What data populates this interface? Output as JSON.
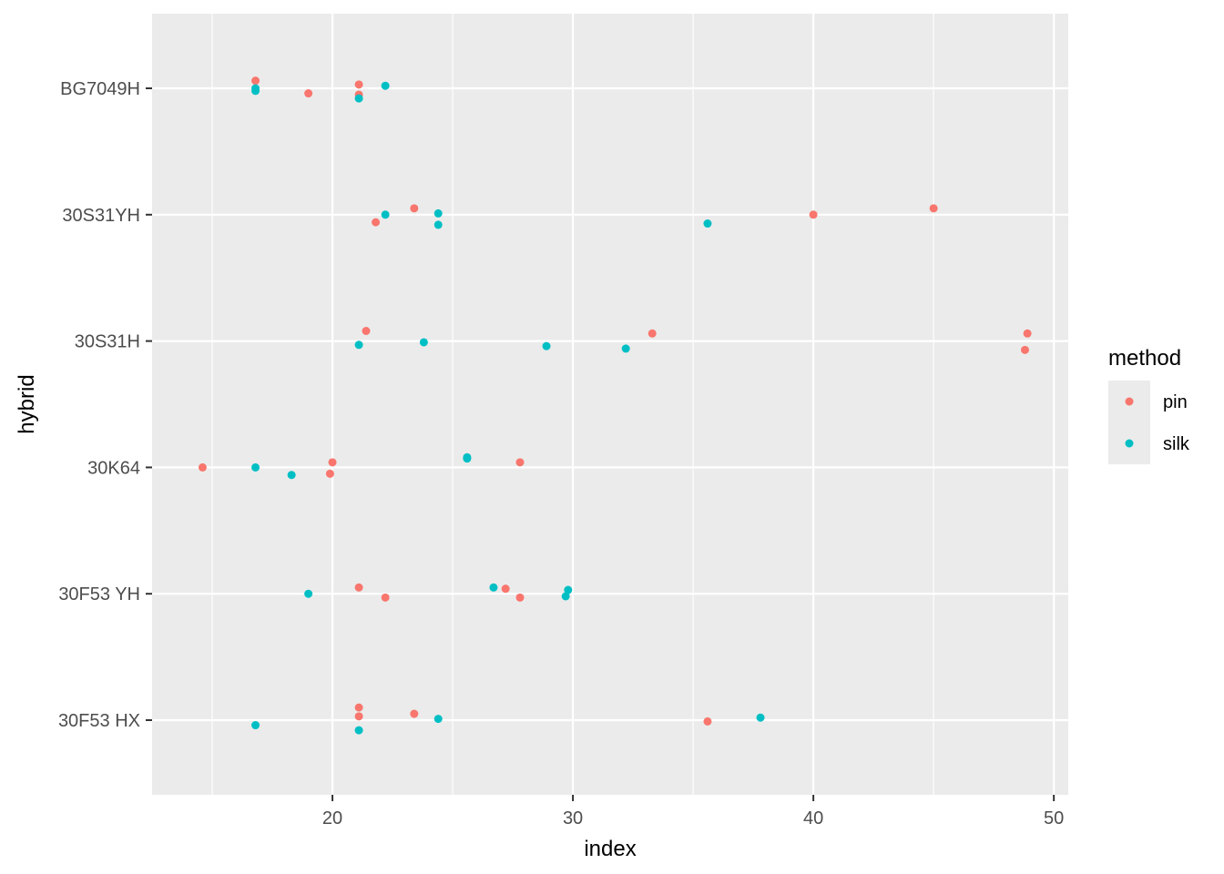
{
  "chart_data": {
    "type": "scatter",
    "title": "",
    "xlabel": "index",
    "ylabel": "hybrid",
    "xlim": [
      12.5,
      50.6
    ],
    "x_ticks": [
      20,
      30,
      40,
      50
    ],
    "categories": [
      "30F53 HX",
      "30F53 YH",
      "30K64",
      "30S31H",
      "30S31YH",
      "BG7049H"
    ],
    "grid": true,
    "legend": {
      "title": "method",
      "position": "right",
      "entries": [
        "pin",
        "silk"
      ]
    },
    "colors": {
      "pin": "#F8766D",
      "silk": "#00BFC4",
      "panel": "#EBEBEB",
      "grid": "#FFFFFF"
    },
    "series": [
      {
        "name": "pin",
        "points": [
          {
            "x": 16.8,
            "y": "BG7049H",
            "jitter": 0.06
          },
          {
            "x": 19.0,
            "y": "BG7049H",
            "jitter": -0.04
          },
          {
            "x": 21.1,
            "y": "BG7049H",
            "jitter": 0.03
          },
          {
            "x": 21.1,
            "y": "BG7049H",
            "jitter": -0.05
          },
          {
            "x": 23.4,
            "y": "30S31YH",
            "jitter": 0.05
          },
          {
            "x": 21.8,
            "y": "30S31YH",
            "jitter": -0.06
          },
          {
            "x": 40.0,
            "y": "30S31YH",
            "jitter": 0.0
          },
          {
            "x": 45.0,
            "y": "30S31YH",
            "jitter": 0.05
          },
          {
            "x": 21.4,
            "y": "30S31H",
            "jitter": 0.08
          },
          {
            "x": 33.3,
            "y": "30S31H",
            "jitter": 0.06
          },
          {
            "x": 48.9,
            "y": "30S31H",
            "jitter": 0.06
          },
          {
            "x": 48.8,
            "y": "30S31H",
            "jitter": -0.07
          },
          {
            "x": 14.6,
            "y": "30K64",
            "jitter": 0.0
          },
          {
            "x": 20.0,
            "y": "30K64",
            "jitter": 0.04
          },
          {
            "x": 19.9,
            "y": "30K64",
            "jitter": -0.05
          },
          {
            "x": 27.8,
            "y": "30K64",
            "jitter": 0.04
          },
          {
            "x": 21.1,
            "y": "30F53 YH",
            "jitter": 0.05
          },
          {
            "x": 22.2,
            "y": "30F53 YH",
            "jitter": -0.03
          },
          {
            "x": 27.2,
            "y": "30F53 YH",
            "jitter": 0.04
          },
          {
            "x": 27.8,
            "y": "30F53 YH",
            "jitter": -0.03
          },
          {
            "x": 21.1,
            "y": "30F53 HX",
            "jitter": 0.1
          },
          {
            "x": 21.1,
            "y": "30F53 HX",
            "jitter": 0.03
          },
          {
            "x": 23.4,
            "y": "30F53 HX",
            "jitter": 0.05
          },
          {
            "x": 35.6,
            "y": "30F53 HX",
            "jitter": -0.01
          }
        ]
      },
      {
        "name": "silk",
        "points": [
          {
            "x": 16.8,
            "y": "BG7049H",
            "jitter": 0.0
          },
          {
            "x": 16.8,
            "y": "BG7049H",
            "jitter": -0.02
          },
          {
            "x": 21.1,
            "y": "BG7049H",
            "jitter": -0.08
          },
          {
            "x": 22.2,
            "y": "BG7049H",
            "jitter": 0.02
          },
          {
            "x": 22.2,
            "y": "30S31YH",
            "jitter": 0.0
          },
          {
            "x": 24.4,
            "y": "30S31YH",
            "jitter": 0.01
          },
          {
            "x": 24.4,
            "y": "30S31YH",
            "jitter": -0.08
          },
          {
            "x": 35.6,
            "y": "30S31YH",
            "jitter": -0.07
          },
          {
            "x": 21.1,
            "y": "30S31H",
            "jitter": -0.03
          },
          {
            "x": 23.8,
            "y": "30S31H",
            "jitter": -0.01
          },
          {
            "x": 28.9,
            "y": "30S31H",
            "jitter": -0.04
          },
          {
            "x": 32.2,
            "y": "30S31H",
            "jitter": -0.06
          },
          {
            "x": 16.8,
            "y": "30K64",
            "jitter": 0.0
          },
          {
            "x": 18.3,
            "y": "30K64",
            "jitter": -0.06
          },
          {
            "x": 25.6,
            "y": "30K64",
            "jitter": 0.08
          },
          {
            "x": 25.6,
            "y": "30K64",
            "jitter": 0.07
          },
          {
            "x": 19.0,
            "y": "30F53 YH",
            "jitter": 0.0
          },
          {
            "x": 26.7,
            "y": "30F53 YH",
            "jitter": 0.05
          },
          {
            "x": 29.7,
            "y": "30F53 YH",
            "jitter": -0.02
          },
          {
            "x": 29.8,
            "y": "30F53 YH",
            "jitter": 0.03
          },
          {
            "x": 16.8,
            "y": "30F53 HX",
            "jitter": -0.04
          },
          {
            "x": 21.1,
            "y": "30F53 HX",
            "jitter": -0.08
          },
          {
            "x": 24.4,
            "y": "30F53 HX",
            "jitter": 0.01
          },
          {
            "x": 37.8,
            "y": "30F53 HX",
            "jitter": 0.02
          }
        ]
      }
    ]
  }
}
